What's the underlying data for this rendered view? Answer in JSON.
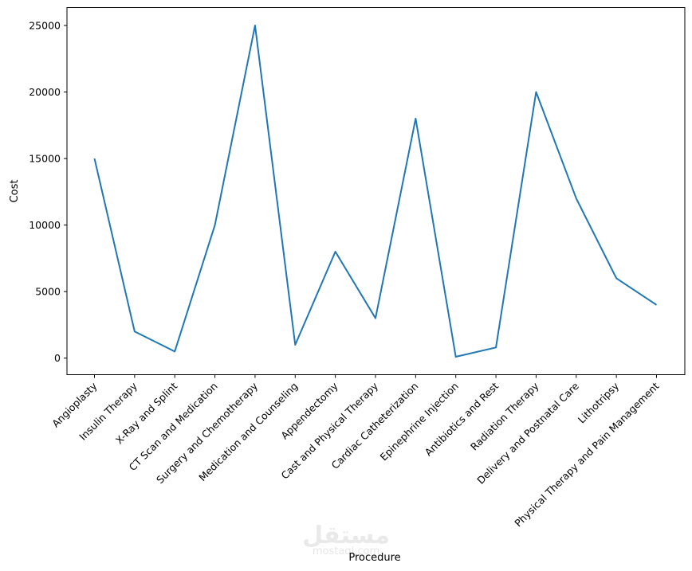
{
  "chart_data": {
    "type": "line",
    "xlabel": "Procedure",
    "ylabel": "Cost",
    "categories": [
      "Angioplasty",
      "Insulin Therapy",
      "X-Ray and Splint",
      "CT Scan and Medication",
      "Surgery and Chemotherapy",
      "Medication and Counseling",
      "Appendectomy",
      "Cast and Physical Therapy",
      "Cardiac Catheterization",
      "Epinephrine Injection",
      "Antibiotics and Rest",
      "Radiation Therapy",
      "Delivery and Postnatal Care",
      "Lithotripsy",
      "Physical Therapy and Pain Management"
    ],
    "values": [
      15000,
      2000,
      500,
      10000,
      25000,
      1000,
      8000,
      3000,
      18000,
      100,
      800,
      20000,
      12000,
      6000,
      4000
    ],
    "yticks": [
      0,
      5000,
      10000,
      15000,
      20000,
      25000
    ],
    "ylim": [
      -1245,
      26345
    ],
    "grid": false,
    "line_color": "#1f77b4"
  },
  "watermark": {
    "arabic": "مستقل",
    "latin": "mostaql.com"
  }
}
